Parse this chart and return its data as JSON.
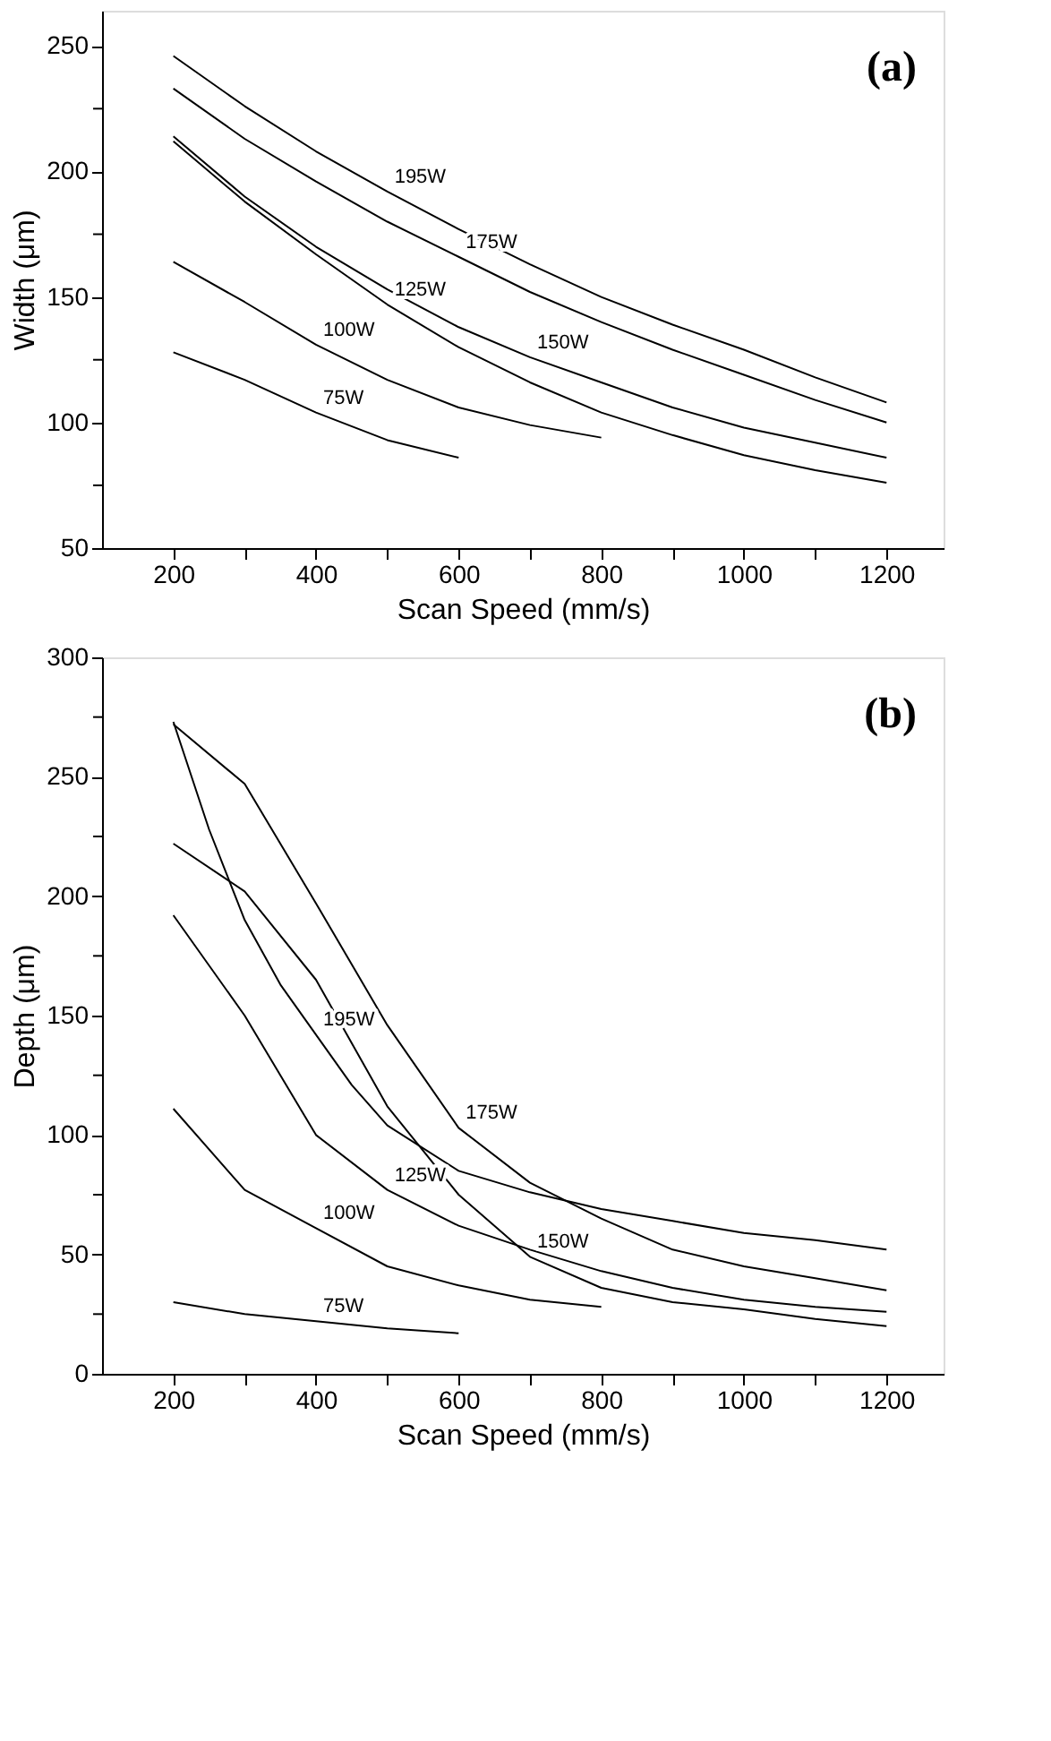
{
  "chart_data": [
    {
      "type": "line",
      "xlabel": "Scan Speed (mm/s)",
      "ylabel": "Width (μm)",
      "annotations": [
        "(a)"
      ],
      "xlim": [
        100,
        1280
      ],
      "ylim": [
        50,
        264
      ],
      "xticks": [
        200,
        {
          "value": 300,
          "label": null
        },
        400,
        {
          "value": 500,
          "label": null
        },
        600,
        {
          "value": 700,
          "label": null
        },
        800,
        {
          "value": 900,
          "label": null
        },
        1000,
        {
          "value": 1100,
          "label": null
        },
        1200
      ],
      "yticks": [
        50,
        {
          "value": 75,
          "label": null
        },
        100,
        {
          "value": 125,
          "label": null
        },
        150,
        {
          "value": 175,
          "label": null
        },
        200,
        {
          "value": 225,
          "label": null
        },
        250
      ],
      "grid": false,
      "legend": false,
      "marker": "none",
      "line_style": "solid",
      "series": [
        {
          "name": "195W",
          "color": "#000000",
          "x": [
            200,
            300,
            400,
            500,
            600,
            700,
            800,
            900,
            1000,
            1100,
            1200
          ],
          "values": [
            246,
            226,
            208,
            192,
            177,
            163,
            150,
            139,
            129,
            118,
            108
          ]
        },
        {
          "name": "175W",
          "color": "#000000",
          "x": [
            200,
            300,
            400,
            500,
            600,
            700,
            800,
            900,
            1000,
            1100,
            1200
          ],
          "values": [
            233,
            213,
            196,
            180,
            166,
            152,
            140,
            129,
            119,
            109,
            100
          ]
        },
        {
          "name": "150W",
          "color": "#000000",
          "x": [
            200,
            300,
            400,
            500,
            600,
            700,
            800,
            900,
            1000,
            1100,
            1200
          ],
          "values": [
            214,
            190,
            170,
            153,
            138,
            126,
            116,
            106,
            98,
            92,
            86
          ]
        },
        {
          "name": "125W",
          "color": "#000000",
          "x": [
            200,
            300,
            400,
            500,
            600,
            700,
            800,
            900,
            1000,
            1100,
            1200
          ],
          "values": [
            212,
            188,
            167,
            147,
            130,
            116,
            104,
            95,
            87,
            81,
            76
          ]
        },
        {
          "name": "100W",
          "color": "#000000",
          "x": [
            200,
            300,
            400,
            500,
            600,
            700,
            800
          ],
          "values": [
            164,
            148,
            131,
            117,
            106,
            99,
            94
          ]
        },
        {
          "name": "75W",
          "color": "#000000",
          "x": [
            200,
            300,
            400,
            500,
            600
          ],
          "values": [
            128,
            117,
            104,
            93,
            86
          ]
        }
      ]
    },
    {
      "type": "line",
      "xlabel": "Scan Speed (mm/s)",
      "ylabel": "Depth (μm)",
      "annotations": [
        "(b)"
      ],
      "xlim": [
        100,
        1280
      ],
      "ylim": [
        0,
        300
      ],
      "xticks": [
        200,
        {
          "value": 300,
          "label": null
        },
        400,
        {
          "value": 500,
          "label": null
        },
        600,
        {
          "value": 700,
          "label": null
        },
        800,
        {
          "value": 900,
          "label": null
        },
        1000,
        {
          "value": 1100,
          "label": null
        },
        1200
      ],
      "yticks": [
        0,
        {
          "value": 25,
          "label": null
        },
        50,
        {
          "value": 75,
          "label": null
        },
        100,
        {
          "value": 125,
          "label": null
        },
        150,
        {
          "value": 175,
          "label": null
        },
        200,
        {
          "value": 225,
          "label": null
        },
        250,
        {
          "value": 275,
          "label": null
        },
        300
      ],
      "grid": false,
      "legend": false,
      "marker": "none",
      "line_style": "solid",
      "series": [
        {
          "name": "195W",
          "color": "#000000",
          "x": [
            200,
            250,
            300,
            350,
            400,
            450,
            500,
            600,
            700,
            800,
            900,
            1000,
            1100,
            1200
          ],
          "values": [
            273,
            228,
            190,
            163,
            142,
            121,
            104,
            85,
            76,
            69,
            64,
            59,
            56,
            52
          ]
        },
        {
          "name": "175W",
          "color": "#000000",
          "x": [
            200,
            300,
            400,
            500,
            600,
            700,
            800,
            900,
            1000,
            1100,
            1200
          ],
          "values": [
            272,
            247,
            197,
            146,
            103,
            80,
            65,
            52,
            45,
            40,
            35
          ]
        },
        {
          "name": "150W",
          "color": "#000000",
          "x": [
            200,
            300,
            400,
            500,
            600,
            700,
            800,
            900,
            1000,
            1100,
            1200
          ],
          "values": [
            222,
            202,
            165,
            112,
            75,
            49,
            36,
            30,
            27,
            23,
            20
          ]
        },
        {
          "name": "125W",
          "color": "#000000",
          "x": [
            200,
            300,
            400,
            500,
            600,
            700,
            800,
            900,
            1000,
            1100,
            1200
          ],
          "values": [
            192,
            150,
            100,
            77,
            62,
            52,
            43,
            36,
            31,
            28,
            26
          ]
        },
        {
          "name": "100W",
          "color": "#000000",
          "x": [
            200,
            300,
            400,
            500,
            600,
            700,
            800
          ],
          "values": [
            111,
            77,
            61,
            45,
            37,
            31,
            28
          ]
        },
        {
          "name": "75W",
          "color": "#000000",
          "x": [
            200,
            300,
            400,
            500,
            600
          ],
          "values": [
            30,
            25,
            22,
            19,
            17
          ]
        }
      ]
    }
  ]
}
